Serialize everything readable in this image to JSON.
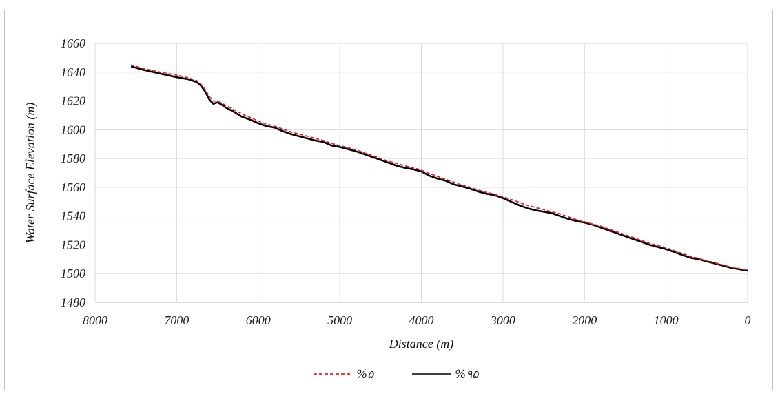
{
  "chart_data": {
    "type": "line",
    "title": "",
    "xlabel": "Distance (m)",
    "ylabel": "Water Surface Elevation  (m)",
    "xlim": [
      8000,
      0
    ],
    "ylim": [
      1480,
      1660
    ],
    "x_ticks": [
      "8000",
      "7000",
      "6000",
      "5000",
      "4000",
      "3000",
      "2000",
      "1000",
      "0"
    ],
    "y_ticks": [
      "1480",
      "1500",
      "1520",
      "1540",
      "1560",
      "1580",
      "1600",
      "1620",
      "1640",
      "1660"
    ],
    "x_reversed": true,
    "grid": true,
    "legend_position": "bottom-center",
    "series": [
      {
        "name": "%۵",
        "color": "#e8202a",
        "dash": "dashed",
        "x": [
          7560,
          7400,
          7200,
          7000,
          6850,
          6750,
          6700,
          6650,
          6600,
          6550,
          6500,
          6450,
          6400,
          6300,
          6200,
          6100,
          6000,
          5900,
          5800,
          5700,
          5600,
          5500,
          5400,
          5300,
          5200,
          5100,
          5000,
          4900,
          4800,
          4700,
          4600,
          4500,
          4400,
          4300,
          4200,
          4100,
          4000,
          3900,
          3800,
          3700,
          3600,
          3500,
          3400,
          3300,
          3200,
          3100,
          3000,
          2900,
          2800,
          2700,
          2600,
          2500,
          2400,
          2300,
          2200,
          2100,
          2000,
          1900,
          1800,
          1700,
          1600,
          1500,
          1400,
          1300,
          1200,
          1100,
          1000,
          900,
          800,
          700,
          600,
          500,
          400,
          300,
          200,
          100,
          0
        ],
        "y": [
          1645,
          1642.5,
          1640,
          1638,
          1636,
          1634,
          1631.5,
          1628,
          1623,
          1620,
          1620,
          1618.5,
          1617,
          1614,
          1611,
          1608.5,
          1606,
          1604,
          1602.5,
          1600.5,
          1598.5,
          1597,
          1595.5,
          1594,
          1592.5,
          1590.5,
          1589,
          1587.5,
          1586,
          1584,
          1582,
          1580,
          1578,
          1576.5,
          1575,
          1573.5,
          1572,
          1569.5,
          1567.5,
          1565.5,
          1563.5,
          1561.5,
          1560,
          1558,
          1556.5,
          1555,
          1553.5,
          1551.5,
          1549.5,
          1547.5,
          1546,
          1544.5,
          1543,
          1541.5,
          1539.5,
          1537.5,
          1536,
          1534.5,
          1533,
          1531,
          1529,
          1527,
          1525,
          1523,
          1521,
          1519.5,
          1518,
          1516,
          1514,
          1512,
          1510.5,
          1509,
          1507.5,
          1506,
          1504.5,
          1503.5,
          1502.5
        ]
      },
      {
        "name": "%۹۵",
        "color": "#000000",
        "dash": "solid",
        "x": [
          7560,
          7400,
          7200,
          7000,
          6850,
          6750,
          6700,
          6650,
          6600,
          6550,
          6500,
          6450,
          6400,
          6300,
          6200,
          6100,
          6000,
          5900,
          5800,
          5700,
          5600,
          5500,
          5400,
          5300,
          5200,
          5100,
          5000,
          4900,
          4800,
          4700,
          4600,
          4500,
          4400,
          4300,
          4200,
          4100,
          4000,
          3900,
          3800,
          3700,
          3600,
          3500,
          3400,
          3300,
          3200,
          3100,
          3000,
          2900,
          2800,
          2700,
          2600,
          2500,
          2400,
          2300,
          2200,
          2100,
          2000,
          1900,
          1800,
          1700,
          1600,
          1500,
          1400,
          1300,
          1200,
          1100,
          1000,
          900,
          800,
          700,
          600,
          500,
          400,
          300,
          200,
          100,
          0
        ],
        "y": [
          1644,
          1641.5,
          1639,
          1636.5,
          1635,
          1633,
          1630.5,
          1626.5,
          1621,
          1618,
          1619,
          1617.5,
          1615.5,
          1612.5,
          1609,
          1607,
          1604.5,
          1602.5,
          1601.5,
          1599,
          1597,
          1595.5,
          1594,
          1592.5,
          1591.5,
          1589,
          1588,
          1586.5,
          1585,
          1583,
          1581,
          1579,
          1577,
          1575,
          1573.5,
          1572.5,
          1571,
          1568,
          1566,
          1564.5,
          1562,
          1560.5,
          1559,
          1557,
          1555.5,
          1554.5,
          1552.5,
          1550,
          1547.5,
          1545.5,
          1544,
          1543,
          1542,
          1540,
          1538,
          1536.5,
          1535.5,
          1534,
          1532,
          1530,
          1528,
          1526,
          1524,
          1522,
          1520,
          1518.5,
          1517,
          1515,
          1513,
          1511,
          1510,
          1508.5,
          1507,
          1505.5,
          1504,
          1503,
          1502
        ]
      }
    ]
  }
}
